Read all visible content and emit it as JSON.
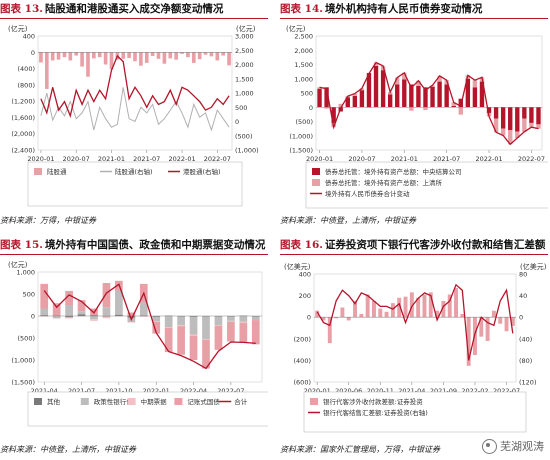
{
  "source_label": "资料来源：",
  "panels": [
    {
      "title_num": "图表 13.",
      "title_text": "陆股通和港股通买入成交净额变动情况",
      "source_text": "万得，中银证券",
      "yleft_unit": "(亿元)",
      "yright_unit": "(亿元)",
      "legend": [
        "陆股通",
        "陆股通(右轴)",
        "港股通(右轴)"
      ]
    },
    {
      "title_num": "图表 14.",
      "title_text": "境外机构持有人民币债券变动情况",
      "source_text": "中债登，上清所，中银证券",
      "yleft_unit": "(亿元)",
      "yright_unit": "",
      "legend": [
        "债券总托管：境外持有资产总额：中央结算公司",
        "债券总托管：境外持有资产总额：上清所",
        "境外持有人民币债券合计变动"
      ]
    },
    {
      "title_num": "图表 15.",
      "title_text": "境外持有中国国债、政金债和中期票据变动情况",
      "source_text": "中债登，上清所，中银证券",
      "yleft_unit": "(亿元)",
      "yright_unit": "",
      "legend": [
        "其他",
        "政策性银行债",
        "中期票据",
        "记账式国债",
        "合计"
      ]
    },
    {
      "title_num": "图表 16.",
      "title_text": "证券投资项下银行代客涉外收付款和结售汇差额",
      "source_text": "国家外汇管理局，万得，中银证券",
      "yleft_unit": "(亿美元)",
      "yright_unit": "(亿美元)",
      "legend": [
        "银行代客涉外收付款差额:证券投资",
        "银行代客结售汇差额:证券投资(右轴)"
      ]
    }
  ],
  "watermark": "芜湖观涛",
  "chart_data": [
    {
      "type": "bar",
      "title": "陆股通和港股通买入成交净额变动情况",
      "ylabel": "(亿元)",
      "ylabel_right": "(亿元)",
      "ylim": [
        -2400,
        400
      ],
      "ylim_right": [
        -1000,
        3000
      ],
      "yticks": [
        -2400,
        -2000,
        -1600,
        -1200,
        -800,
        -400,
        0,
        400
      ],
      "yticks_right": [
        -1000,
        -500,
        0,
        500,
        1000,
        1500,
        2000,
        2500,
        3000
      ],
      "yticklabels": [
        "(2,400)",
        "(2,000)",
        "(1,600)",
        "(1,200)",
        "(800)",
        "(400)",
        "0",
        "400"
      ],
      "yticklabels_right": [
        "(1,000)",
        "(500)",
        "0",
        "500",
        "1,000",
        "1,500",
        "2,000",
        "2,500",
        "3,000"
      ],
      "xticks": [
        "2020-01",
        "2020-07",
        "2021-01",
        "2021-07",
        "2022-01",
        "2022-07"
      ],
      "xtick_index": [
        0,
        6,
        12,
        18,
        24,
        30
      ],
      "n_points": 33,
      "series": [
        {
          "name": "陆股通",
          "kind": "bar",
          "axis": "left",
          "color": "#e8a0a6",
          "values": [
            -250,
            -900,
            -200,
            -180,
            -120,
            -200,
            -80,
            -350,
            -600,
            -150,
            -120,
            -300,
            -420,
            -180,
            -160,
            -140,
            -220,
            -330,
            -260,
            -90,
            -160,
            -280,
            -150,
            -180,
            -40,
            -120,
            -260,
            -170,
            -60,
            -100,
            -200,
            -80,
            -320
          ]
        },
        {
          "name": "陆股通(右轴)",
          "kind": "line",
          "axis": "right",
          "color": "#b0b0b0",
          "values": [
            200,
            1000,
            50,
            500,
            200,
            700,
            100,
            300,
            700,
            -300,
            500,
            100,
            -200,
            -100,
            1200,
            100,
            0,
            500,
            300,
            600,
            -100,
            100,
            400,
            700,
            300,
            -200,
            600,
            150,
            300,
            -300,
            400,
            100,
            -200
          ]
        },
        {
          "name": "港股通(右轴)",
          "kind": "line",
          "axis": "right",
          "color": "#b5152b",
          "values": [
            800,
            300,
            1200,
            400,
            700,
            200,
            1100,
            600,
            1100,
            700,
            1100,
            800,
            1800,
            2300,
            2100,
            800,
            1200,
            900,
            500,
            900,
            600,
            700,
            1100,
            600,
            1200,
            1100,
            900,
            700,
            400,
            500,
            800,
            600,
            900
          ]
        }
      ]
    },
    {
      "type": "bar",
      "title": "境外机构持有人民币债券变动情况",
      "ylabel": "(亿元)",
      "ylim": [
        -1500,
        2500
      ],
      "yticks": [
        -1500,
        -1000,
        -500,
        0,
        500,
        1000,
        1500,
        2000,
        2500
      ],
      "yticklabels": [
        "(1,500)",
        "(1,000)",
        "(500)",
        "0",
        "500",
        "1,000",
        "1,500",
        "2,000",
        "2,500"
      ],
      "xticks": [
        "2020-01",
        "2020-07",
        "2021-01",
        "2021-07",
        "2022-01",
        "2022-07"
      ],
      "xtick_index": [
        0,
        6,
        12,
        18,
        24,
        30
      ],
      "n_points": 32,
      "series": [
        {
          "name": "债券总托管：境外持有资产总额：中央结算公司",
          "kind": "bar",
          "color": "#b5152b",
          "values": [
            650,
            700,
            -550,
            -150,
            350,
            400,
            600,
            1200,
            1450,
            1300,
            450,
            800,
            980,
            800,
            750,
            700,
            720,
            900,
            800,
            50,
            300,
            1000,
            700,
            900,
            -200,
            -400,
            -750,
            -800,
            -850,
            -400,
            -550,
            -600
          ]
        },
        {
          "name": "债券总托管：境外持有资产总额：上清所",
          "kind": "bar",
          "color": "#e8a0a6",
          "values": [
            50,
            -50,
            -150,
            120,
            40,
            80,
            60,
            -20,
            120,
            150,
            80,
            240,
            230,
            -120,
            180,
            -100,
            50,
            200,
            150,
            120,
            -260,
            120,
            250,
            150,
            -120,
            -480,
            -240,
            -500,
            -230,
            -460,
            -150,
            -150
          ]
        },
        {
          "name": "境外持有人民币债券合计变动",
          "kind": "line",
          "color": "#b5152b",
          "values": [
            700,
            650,
            -700,
            -30,
            390,
            480,
            660,
            1180,
            1570,
            1450,
            530,
            1040,
            1210,
            680,
            930,
            600,
            770,
            1100,
            950,
            170,
            40,
            1120,
            950,
            1050,
            -320,
            -880,
            -990,
            -1300,
            -1080,
            -860,
            -700,
            -750
          ]
        }
      ]
    },
    {
      "type": "bar",
      "title": "境外持有中国国债、政金债和中期票据变动情况",
      "ylabel": "(亿元)",
      "ylim": [
        -1500,
        1000
      ],
      "yticks": [
        -1500,
        -1000,
        -500,
        0,
        500,
        1000
      ],
      "yticklabels": [
        "(1,500)",
        "(1,000)",
        "(500)",
        "0",
        "500",
        "1,000"
      ],
      "xticks": [
        "2021-04",
        "2021-07",
        "2021-10",
        "2022-01",
        "2022-04",
        "2022-07"
      ],
      "xtick_index": [
        0,
        3,
        6,
        9,
        12,
        15
      ],
      "n_points": 18,
      "series": [
        {
          "name": "其他",
          "kind": "bar",
          "color": "#7a7a7a",
          "values": [
            20,
            10,
            -30,
            40,
            20,
            -10,
            30,
            -40,
            10,
            -20,
            10,
            -10,
            -20,
            -10,
            -10,
            -10,
            10,
            -10
          ]
        },
        {
          "name": "政策性银行债",
          "kind": "bar",
          "color": "#bdbdbd",
          "values": [
            150,
            -50,
            250,
            70,
            -70,
            200,
            550,
            -100,
            300,
            -100,
            -250,
            -200,
            -400,
            -520,
            -200,
            -100,
            -130,
            -80
          ]
        },
        {
          "name": "中期票据",
          "kind": "bar",
          "color": "#f3c1c5",
          "values": [
            -15,
            -10,
            -25,
            -10,
            -40,
            -40,
            -10,
            -10,
            -20,
            -10,
            -20,
            -20,
            -30,
            -15,
            -10,
            -20,
            -30,
            -5
          ]
        },
        {
          "name": "记账式国债",
          "kind": "bar",
          "color": "#e8a0a6",
          "values": [
            560,
            280,
            320,
            250,
            150,
            550,
            220,
            80,
            420,
            -270,
            -550,
            -650,
            -550,
            -650,
            -550,
            -450,
            -450,
            -550
          ]
        },
        {
          "name": "合计",
          "kind": "line",
          "color": "#b5152b",
          "values": [
            580,
            200,
            480,
            330,
            70,
            520,
            720,
            -80,
            520,
            -380,
            -810,
            -900,
            -1030,
            -1190,
            -800,
            -590,
            -600,
            -620
          ]
        }
      ]
    },
    {
      "type": "bar",
      "title": "证券投资项下银行代客涉外收付款和结售汇差额",
      "ylabel": "(亿美元)",
      "ylabel_right": "(亿美元)",
      "ylim": [
        -600,
        400
      ],
      "ylim_right": [
        -120,
        80
      ],
      "yticks": [
        -600,
        -400,
        -200,
        0,
        200,
        400
      ],
      "yticks_right": [
        -120,
        -80,
        -40,
        0,
        40,
        80
      ],
      "yticklabels": [
        "(600)",
        "(400)",
        "(200)",
        "0",
        "200",
        "400"
      ],
      "yticklabels_right": [
        "(120)",
        "(80)",
        "(40)",
        "0",
        "40",
        "80"
      ],
      "xticks": [
        "2020-01",
        "2020-06",
        "2020-11",
        "2021-04",
        "2021-09",
        "2022-02",
        "2022-07"
      ],
      "xtick_index": [
        0,
        5,
        10,
        15,
        20,
        25,
        30
      ],
      "n_points": 32,
      "series": [
        {
          "name": "银行代客涉外收付款差额:证券投资",
          "kind": "bar",
          "axis": "left",
          "color": "#e8a0a6",
          "values": [
            60,
            -30,
            -240,
            -10,
            90,
            -30,
            150,
            30,
            210,
            150,
            80,
            50,
            130,
            180,
            190,
            230,
            180,
            210,
            230,
            60,
            150,
            210,
            270,
            30,
            -450,
            -350,
            -180,
            -220,
            60,
            -60,
            -130,
            -80
          ]
        },
        {
          "name": "银行代客结售汇差额:证券投资(右轴)",
          "kind": "line",
          "axis": "right",
          "color": "#b5152b",
          "values": [
            10,
            -10,
            -15,
            30,
            50,
            40,
            25,
            45,
            40,
            30,
            20,
            20,
            15,
            25,
            -10,
            20,
            35,
            45,
            40,
            -5,
            20,
            30,
            60,
            50,
            -80,
            -30,
            0,
            -10,
            -15,
            30,
            50,
            -30
          ]
        }
      ]
    }
  ]
}
